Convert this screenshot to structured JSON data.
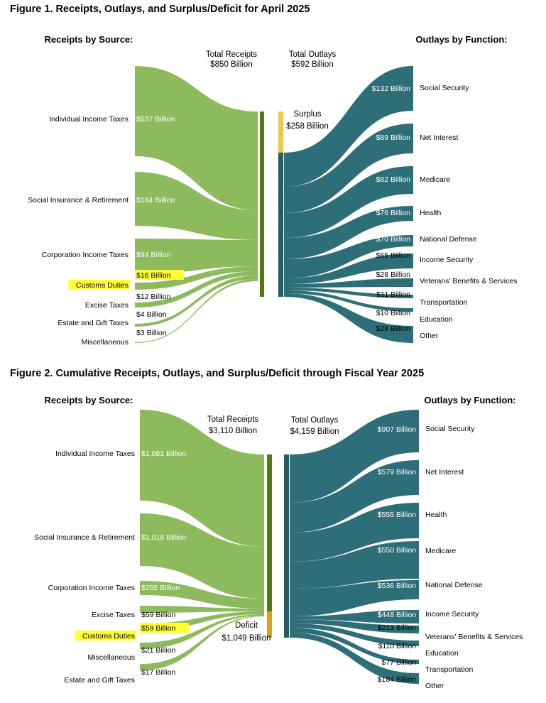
{
  "colors": {
    "receipts": "#8cba5d",
    "receipts_bar": "#4f7c0d",
    "outlays": "#2e6e78",
    "outlays_bar": "#285b62",
    "surplus": "#ecc94b",
    "deficit": "#dda20f",
    "highlight": "#ffff33"
  },
  "figure1": {
    "title": "Figure 1. Receipts, Outlays, and Surplus/Deficit for April 2025",
    "receipts_header": "Receipts by Source:",
    "outlays_header": "Outlays by Function:",
    "total_receipts": [
      "Total Receipts",
      "$850 Billion"
    ],
    "total_outlays": [
      "Total Outlays",
      "$592 Billion"
    ],
    "balance": [
      "Surplus",
      "$258 Billion"
    ],
    "receipts": [
      {
        "name": "Individual Income Taxes",
        "value": "$537 Billion"
      },
      {
        "name": "Social Insurance & Retirement",
        "value": "$184 Billion"
      },
      {
        "name": "Corporation Income Taxes",
        "value": "$94 Billion"
      },
      {
        "name": "Customs Duties",
        "value": "$16 Billion",
        "highlight": true
      },
      {
        "name": "Excise Taxes",
        "value": "$12 Billion"
      },
      {
        "name": "Estate and Gift Taxes",
        "value": "$4 Billion"
      },
      {
        "name": "Miscellaneous",
        "value": "$3 Billion"
      }
    ],
    "outlays": [
      {
        "name": "Social Security",
        "value": "$132 Billion"
      },
      {
        "name": "Net Interest",
        "value": "$89 Billion"
      },
      {
        "name": "Medicare",
        "value": "$82 Billion"
      },
      {
        "name": "Health",
        "value": "$76 Billion"
      },
      {
        "name": "National Defense",
        "value": "$70 Billion"
      },
      {
        "name": "Income Security",
        "value": "$65 Billion"
      },
      {
        "name": "Veterans' Benefits & Services",
        "value": "$28 Billion"
      },
      {
        "name": "Transportation",
        "value": "$11 Billion"
      },
      {
        "name": "Education",
        "value": "$10 Billion"
      },
      {
        "name": "Other",
        "value": "$28 Billion"
      }
    ]
  },
  "figure2": {
    "title": "Figure 2. Cumulative Receipts, Outlays, and Surplus/Deficit through Fiscal Year 2025",
    "receipts_header": "Receipts by Source:",
    "outlays_header": "Outlays by Function:",
    "total_receipts": [
      "Total Receipts",
      "$3,110 Billion"
    ],
    "total_outlays": [
      "Total Outlays",
      "$4,159 Billion"
    ],
    "balance": [
      "Deficit",
      "$1,049 Billion"
    ],
    "receipts": [
      {
        "name": "Individual Income Taxes",
        "value": "$1,681 Billion"
      },
      {
        "name": "Social Insurance & Retirement",
        "value": "$1,018 Billion"
      },
      {
        "name": "Corporation Income Taxes",
        "value": "$255 Billion"
      },
      {
        "name": "Excise Taxes",
        "value": "$59 Billion"
      },
      {
        "name": "Customs Duties",
        "value": "$59 Billion",
        "highlight": true
      },
      {
        "name": "Miscellaneous",
        "value": "$21 Billion"
      },
      {
        "name": "Estate and Gift Taxes",
        "value": "$17 Billion"
      }
    ],
    "outlays": [
      {
        "name": "Social Security",
        "value": "$907 Billion"
      },
      {
        "name": "Net Interest",
        "value": "$579 Billion"
      },
      {
        "name": "Health",
        "value": "$555 Billion"
      },
      {
        "name": "Medicare",
        "value": "$550 Billion"
      },
      {
        "name": "National Defense",
        "value": "$536 Billion"
      },
      {
        "name": "Income Security",
        "value": "$448 Billion"
      },
      {
        "name": "Veterans' Benefits & Services",
        "value": "$213 Billion"
      },
      {
        "name": "Education",
        "value": "$110 Billion"
      },
      {
        "name": "Transportation",
        "value": "$77 Billion"
      },
      {
        "name": "Other",
        "value": "$184 Billion"
      }
    ]
  }
}
